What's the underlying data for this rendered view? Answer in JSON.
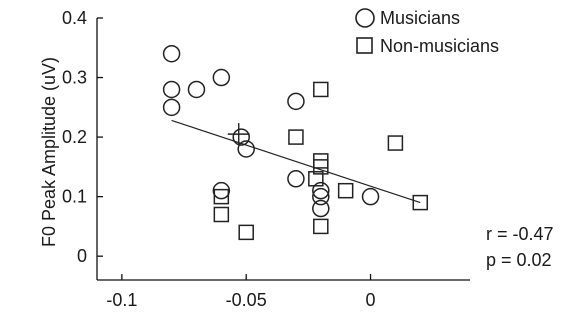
{
  "chart_data": {
    "type": "scatter",
    "title": "",
    "xlabel": "",
    "ylabel": "F0 Peak Amplitude (uV)",
    "xlim": [
      -0.11,
      0.04
    ],
    "ylim": [
      -0.04,
      0.4
    ],
    "xticks": [
      -0.1,
      -0.05,
      0
    ],
    "xtick_labels": [
      "-0.1",
      "-0.05",
      "0"
    ],
    "yticks": [
      0,
      0.1,
      0.2,
      0.3,
      0.4
    ],
    "ytick_labels": [
      "0",
      "0.1",
      "0.2",
      "0.3",
      "0.4"
    ],
    "legend_position": "top-right",
    "series": [
      {
        "name": "Musicians",
        "marker": "circle",
        "points": [
          {
            "x": -0.08,
            "y": 0.34
          },
          {
            "x": -0.08,
            "y": 0.28
          },
          {
            "x": -0.08,
            "y": 0.25
          },
          {
            "x": -0.07,
            "y": 0.28
          },
          {
            "x": -0.06,
            "y": 0.3
          },
          {
            "x": -0.06,
            "y": 0.11
          },
          {
            "x": -0.052,
            "y": 0.2
          },
          {
            "x": -0.05,
            "y": 0.18
          },
          {
            "x": -0.03,
            "y": 0.26
          },
          {
            "x": -0.03,
            "y": 0.13
          },
          {
            "x": -0.02,
            "y": 0.11
          },
          {
            "x": -0.02,
            "y": 0.1
          },
          {
            "x": -0.02,
            "y": 0.08
          },
          {
            "x": 0.0,
            "y": 0.1
          }
        ]
      },
      {
        "name": "Non-musicians",
        "marker": "square",
        "points": [
          {
            "x": -0.06,
            "y": 0.1
          },
          {
            "x": -0.06,
            "y": 0.07
          },
          {
            "x": -0.05,
            "y": 0.04
          },
          {
            "x": -0.03,
            "y": 0.2
          },
          {
            "x": -0.022,
            "y": 0.13
          },
          {
            "x": -0.02,
            "y": 0.28
          },
          {
            "x": -0.02,
            "y": 0.16
          },
          {
            "x": -0.02,
            "y": 0.15
          },
          {
            "x": -0.02,
            "y": 0.05
          },
          {
            "x": -0.01,
            "y": 0.11
          },
          {
            "x": 0.01,
            "y": 0.19
          },
          {
            "x": 0.02,
            "y": 0.09
          }
        ]
      }
    ],
    "mean_marker": {
      "x": -0.053,
      "y": 0.205
    },
    "fit_line": {
      "x1": -0.08,
      "y1": 0.228,
      "x2": 0.02,
      "y2": 0.09
    },
    "annotations": {
      "r": "r = -0.47",
      "p": "p = 0.02"
    },
    "colors": {
      "marker_stroke": "#222222",
      "line": "#222222",
      "axis": "#111111"
    }
  }
}
